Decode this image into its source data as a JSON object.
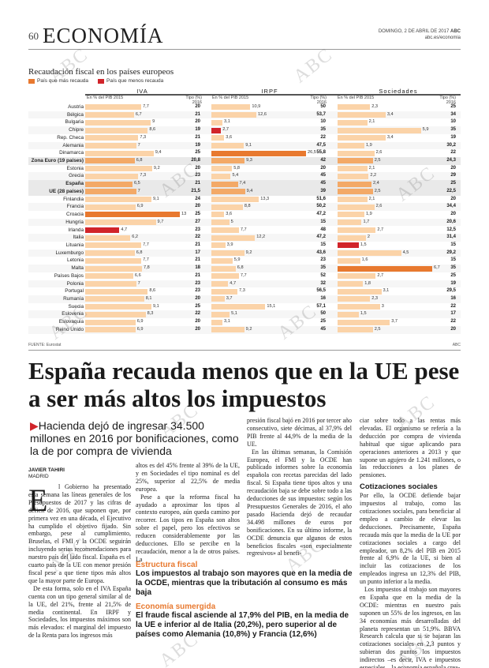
{
  "header": {
    "page_number": "60",
    "section": "ECONOMÍA",
    "date": "DOMINGO, 2 DE ABRIL DE 2017",
    "brand": "ABC",
    "url": "abc.es/economia"
  },
  "chart_data": {
    "type": "bar",
    "title": "Recaudación fiscal en los países europeos",
    "legend": [
      {
        "label": "País que más recauda",
        "color": "#e8792f"
      },
      {
        "label": "País que menos recauda",
        "color": "#d1242a"
      }
    ],
    "groups": [
      {
        "name": "IVA",
        "sub_left": "En % del PIB 2015",
        "sub_right": "Tipo (%)\n2016"
      },
      {
        "name": "IRPF",
        "sub_left": "En % del PIB 2015",
        "sub_right": "Tipo (%)\n2016"
      },
      {
        "name": "Sociedades",
        "sub_left": "En % del PIB 2015",
        "sub_right": "Tipo (%)\n2016"
      }
    ],
    "countries": [
      "Austria",
      "Bélgica",
      "Bulgaria",
      "Chipre",
      "Rep. Checa",
      "Alemania",
      "Dinamarca",
      "Zona Euro (19 países)",
      "Estonia",
      "Grecia",
      "España",
      "UE (28 países)",
      "Finlandia",
      "Francia",
      "Croacia",
      "Hungría",
      "Irlanda",
      "Italia",
      "Lituania",
      "Luxemburgo",
      "Letonia",
      "Malta",
      "Países Bajos",
      "Polonia",
      "Portugal",
      "Rumanía",
      "Suecia",
      "Eslovenia",
      "Eslovaquia",
      "Reino Unido"
    ],
    "iva_values": [
      7.7,
      6.7,
      9.0,
      8.6,
      7.3,
      7.0,
      9.4,
      6.8,
      9.2,
      7.3,
      6.5,
      7.0,
      9.1,
      6.9,
      13.0,
      9.7,
      4.7,
      6.2,
      7.7,
      6.8,
      7.7,
      7.8,
      6.6,
      7.0,
      8.6,
      8.1,
      9.1,
      8.3,
      6.9,
      6.9
    ],
    "iva_tipo": [
      "20",
      "21",
      "20",
      "19",
      "21",
      "19",
      "25",
      "20,8",
      "20",
      "23",
      "21",
      "21,5",
      "24",
      "20",
      "25",
      "27",
      "23",
      "22",
      "21",
      "17",
      "21",
      "18",
      "21",
      "23",
      "23",
      "20",
      "25",
      "22",
      "20",
      "20"
    ],
    "irpf_values": [
      10.9,
      12.6,
      3.1,
      2.7,
      3.6,
      9.1,
      26.5,
      9.3,
      5.8,
      5.4,
      7.4,
      9.4,
      13.3,
      8.8,
      3.6,
      5.0,
      7.7,
      12.2,
      3.9,
      9.2,
      5.9,
      6.8,
      7.7,
      4.7,
      7.3,
      3.7,
      15.1,
      5.1,
      3.1,
      9.2
    ],
    "irpf_tipo": [
      "50",
      "53,7",
      "10",
      "35",
      "22",
      "47,5",
      "55,8",
      "42",
      "20",
      "45",
      "45",
      "39",
      "51,6",
      "50,2",
      "47,2",
      "15",
      "48",
      "47,2",
      "15",
      "43,6",
      "23",
      "35",
      "52",
      "32",
      "56,5",
      "16",
      "57,1",
      "50",
      "25",
      "45"
    ],
    "soc_values": [
      2.3,
      3.4,
      2.1,
      5.9,
      3.4,
      1.9,
      2.6,
      2.5,
      2.1,
      2.2,
      2.4,
      2.5,
      2.1,
      2.6,
      1.9,
      1.7,
      2.7,
      2.0,
      1.5,
      4.5,
      1.6,
      6.7,
      2.7,
      1.8,
      3.1,
      2.3,
      3.0,
      1.5,
      3.7,
      2.5
    ],
    "soc_tipo": [
      "25",
      "34",
      "10",
      "35",
      "19",
      "30,2",
      "22",
      "24,3",
      "20",
      "29",
      "25",
      "22,5",
      "20",
      "34,4",
      "20",
      "20,6",
      "12,5",
      "31,4",
      "15",
      "29,2",
      "15",
      "35",
      "25",
      "19",
      "29,5",
      "16",
      "22",
      "17",
      "22",
      "20"
    ],
    "xlim": [
      0,
      27
    ],
    "highlight": {
      "max": {
        "iva": "Croacia",
        "irpf": "Dinamarca",
        "soc": "Malta"
      },
      "min": {
        "iva": "Irlanda",
        "irpf": "Chipre",
        "soc": "Lituania"
      }
    }
  },
  "chart_footer": {
    "source": "FUENTE: Eurostat",
    "credit": "ABC"
  },
  "watermark": "ABC",
  "article": {
    "headline": "España recauda menos que en la UE pese a ser más altos los impuestos",
    "subhead_marker": "▶",
    "subhead": "Hacienda dejó de ingresar 34.500 millones en 2016 por bonificaciones, como la de por compra de vivienda",
    "author": "JAVIER TAHIRI",
    "city": "MADRID",
    "dropcap": "E",
    "p1": "l Gobierno ha presentado esta semana las líneas generales de los Presupuestos de 2017 y las cifras de déficit de 2016, que suponen que, por primera vez en una década, el Ejecutivo ha cumplido el objetivo fijado. Sin embargo, pese al cumplimiento, Bruselas, el FMI y la OCDE seguirán incluyendo serias recomendaciones para nuestro país del lado fiscal. España es el cuarto país de la UE con menor presión fiscal pese a que tiene tipos más altos que la mayor parte de Europa.",
    "p2": "De esta forma, solo en el IVA España cuenta con un tipo general similar al de la UE, del 21%, frente al 21,5% de media continental. En IRPF y Sociedades, los impuestos máximos son más elevados: el marginal del impuesto de la Renta para los ingresos más",
    "p3": "altos es del 45% frente al 39% de la UE, y en Sociedades el tipo nominal es del 25%, superior al 22,5% de media europea.",
    "p4": "Pese a que la reforma fiscal ha ayudado a aproximar los tipos al contexto europeo, aún queda camino por recorrer. Los tipos en España son altos sobre el papel, pero los efectivos se reducen considerablemente por las deducciones. Ello se percibe en la recaudación, menor a la de otros países. La",
    "box1_kicker": "Estructura fiscal",
    "box1_text": "Los impuestos al trabajo son mayores que en la media de la OCDE, mientras que la tributación al consumo es más baja",
    "box2_kicker": "Economía sumergida",
    "box2_text": "El fraude fiscal asciende al 17,9% del PIB, en la media de la UE e inferior al de Italia (20,2%), pero superior al de países como Alemania (10,8%) y Francia (12,6%)",
    "p5": "presión fiscal bajó en 2016 por tercer año consecutivo, siete décimas, al 37,9% del PIB frente al 44,9% de la media de la UE.",
    "p6": "En las últimas semanas, la Comisión Europea, el FMI y la OCDE han publicado informes sobre la economía española con recetas parecidas del lado fiscal. Si España tiene tipos altos y una recaudación baja se debe sobre todo a las deducciones de sus impuestos: según los Presupuestos Generales de 2016, el año pasado Hacienda dejó de recaudar 34.498 millones de euros por bonificaciones. En su último informe, la OCDE denuncia que algunos de estos beneficios fiscales «son especialmente regresivos» al benefi-",
    "p7": "ciar sobre todo a las rentas más elevadas. El organismo se refería a la deducción por compra de vivienda habitual que sigue aplicando para operaciones anteriores a 2013 y que supone un agujero de 1.241 millones, o las reducciones a los planes de pensiones.",
    "side_head": "Cotizaciones sociales",
    "p8": "Por ello, la OCDE defiende bajar impuestos al trabajo, como las cotizaciones sociales, para beneficiar al empleo a cambio de elevar las deducciones. Precisamente, España recauda más que la media de la UE por cotizaciones sociales a cargo del empleador, un 8,2% del PIB en 2015 frente al 6,9% de la UE, si bien al incluir las cotizaciones de los empleados ingresa un 12,3% del PIB, un punto inferior a la media.",
    "p9": "Los impuestos al trabajo son mayores en España que en la media de la OCDE: mientras en nuestro país suponen un 55% de los ingresos, en las 34 economías más desarrolladas del planeta representan un 51,9%. BBVA Research calcula que si se bajaran las cotizaciones sociales en 2,3 puntos y subieran dos puntos los impuestos indirectos –es decir, IVA e impuestos especiales–, la economía española crea-"
  }
}
